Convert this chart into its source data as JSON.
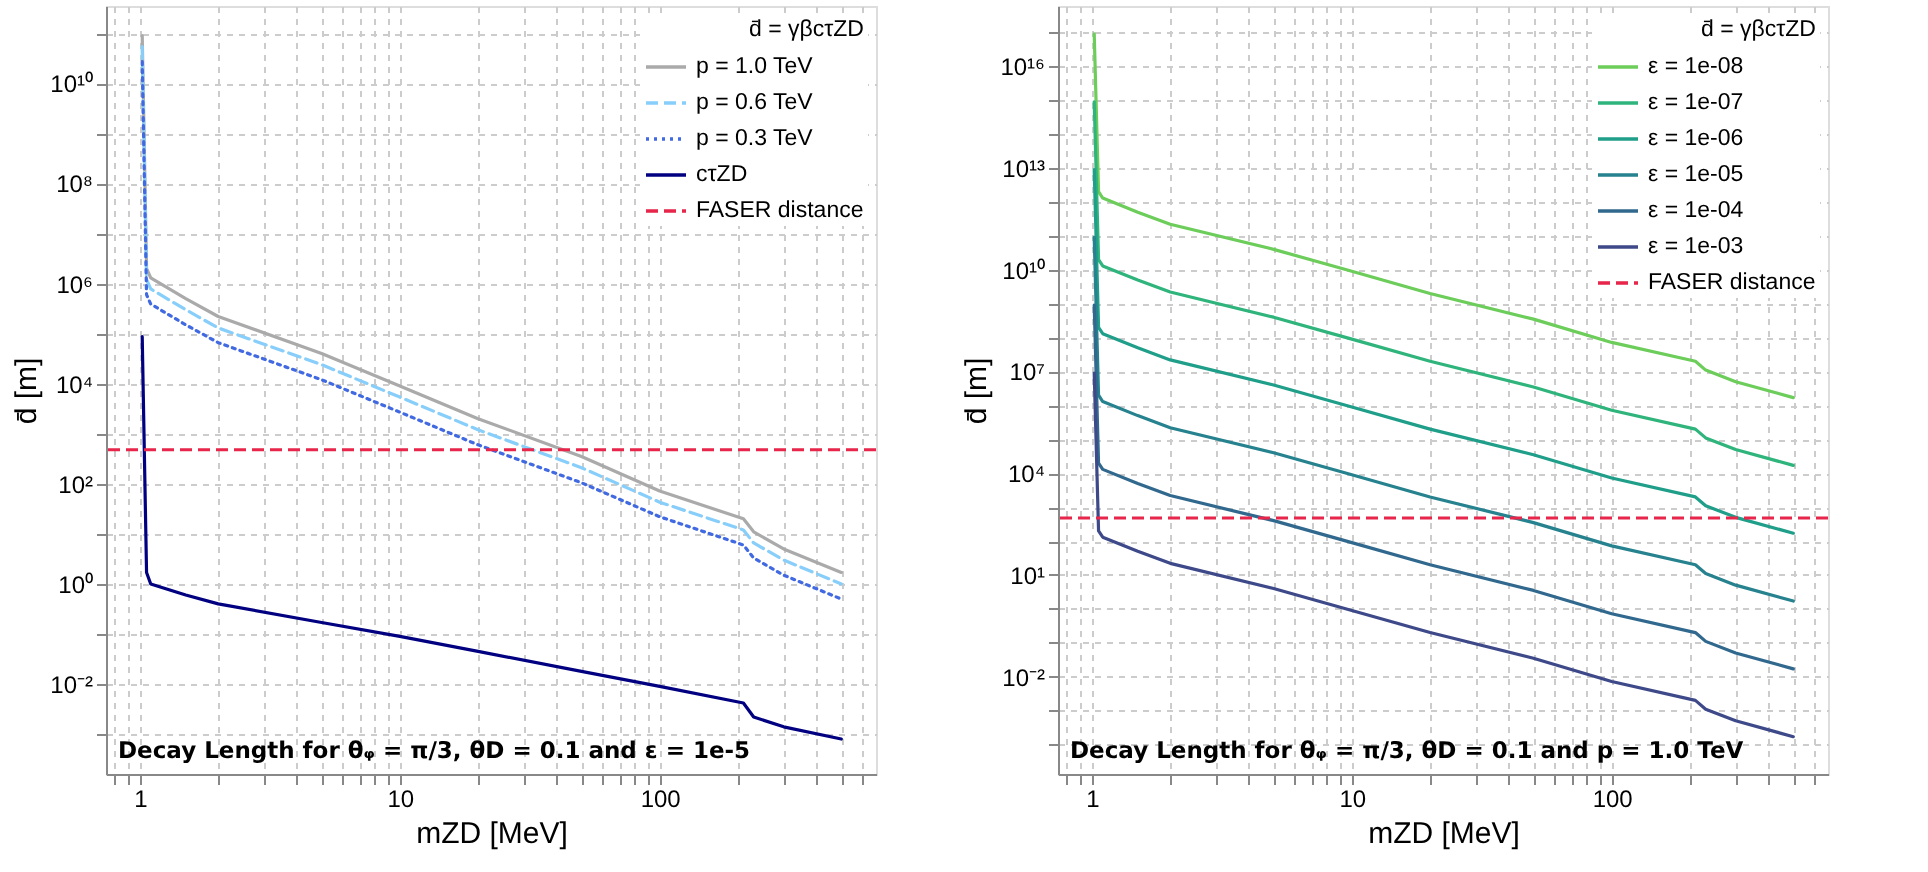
{
  "chart_data": [
    {
      "type": "line",
      "log": "xy",
      "grid": true,
      "legend": "top right",
      "legend_title": "d̄ = γβcτZD",
      "xlabel": "mZD [MeV]",
      "ylabel": "d̄ [m]",
      "xlim": [
        0.74,
        680
      ],
      "ylim": [
        0.00016,
        350000000000
      ],
      "xticks": [
        {
          "value": 0.8,
          "label": null
        },
        {
          "value": 0.9,
          "label": null
        },
        1,
        {
          "value": 2,
          "label": null
        },
        {
          "value": 3,
          "label": null
        },
        {
          "value": 4,
          "label": null
        },
        {
          "value": 5,
          "label": null
        },
        {
          "value": 6,
          "label": null
        },
        {
          "value": 7,
          "label": null
        },
        {
          "value": 8,
          "label": null
        },
        {
          "value": 9,
          "label": null
        },
        10,
        {
          "value": 20,
          "label": null
        },
        {
          "value": 30,
          "label": null
        },
        {
          "value": 40,
          "label": null
        },
        {
          "value": 50,
          "label": null
        },
        {
          "value": 60,
          "label": null
        },
        {
          "value": 70,
          "label": null
        },
        {
          "value": 80,
          "label": null
        },
        {
          "value": 90,
          "label": null
        },
        100,
        {
          "value": 200,
          "label": null
        },
        {
          "value": 300,
          "label": null
        },
        {
          "value": 400,
          "label": null
        },
        {
          "value": 500,
          "label": null
        },
        {
          "value": 600,
          "label": null
        }
      ],
      "yticks": [
        {
          "value": 0.001,
          "label": null
        },
        {
          "value": 0.01,
          "label": "10⁻²"
        },
        {
          "value": 0.1,
          "label": null
        },
        {
          "value": 1,
          "label": "10⁰"
        },
        {
          "value": 10,
          "label": null
        },
        {
          "value": 100,
          "label": "10²"
        },
        {
          "value": 1000,
          "label": null
        },
        {
          "value": 10000,
          "label": "10⁴"
        },
        {
          "value": 100000,
          "label": null
        },
        {
          "value": 1000000,
          "label": "10⁶"
        },
        {
          "value": 10000000,
          "label": null
        },
        {
          "value": 100000000,
          "label": "10⁸"
        },
        {
          "value": 1000000000,
          "label": null
        },
        {
          "value": 10000000000,
          "label": "10¹⁰"
        },
        {
          "value": 100000000000,
          "label": null
        }
      ],
      "x": [
        1.02,
        1.06,
        1.1,
        1.5,
        2,
        5,
        10,
        20,
        50,
        100,
        210,
        230,
        300,
        500
      ],
      "series": [
        {
          "name": "p = 1.0 TeV",
          "color": "#aaaaaa",
          "line_style": "solid",
          "values": [
            90000000000.0,
            2000000.0,
            1300000.0,
            500000.0,
            220000.0,
            40000.0,
            9000.0,
            2000.0,
            350,
            72,
            20,
            11,
            5,
            1.7
          ]
        },
        {
          "name": "p = 0.6 TeV",
          "color": "#87cefa",
          "line_style": "dashed",
          "values": [
            54000000000.0,
            1200000.0,
            780000.0,
            300000.0,
            130000.0,
            24000.0,
            5400.0,
            1200.0,
            210,
            43,
            12,
            6.6,
            3,
            1.0
          ]
        },
        {
          "name": "p = 0.3 TeV",
          "color": "#4169e1",
          "line_style": "dotted",
          "values": [
            27000000000.0,
            600000.0,
            390000.0,
            150000.0,
            66000.0,
            12000.0,
            2700.0,
            600,
            105,
            22,
            6,
            3.3,
            1.5,
            0.5
          ]
        },
        {
          "name": "cτZD",
          "color": "#000080",
          "line_style": "solid",
          "values": [
            87000.0,
            1.7,
            1.0,
            0.6,
            0.4,
            0.17,
            0.09,
            0.045,
            0.018,
            0.009,
            0.0042,
            0.0022,
            0.0014,
            0.0008
          ]
        }
      ],
      "ref_lines": [
        {
          "axis": "y",
          "value": 480,
          "label": "FASER distance",
          "color": "#e8254a",
          "line_style": "dashed"
        }
      ],
      "annotations": [
        "Decay Length for θᵩ = π/3, θD = 0.1 and ε = 1e-5"
      ]
    },
    {
      "type": "line",
      "log": "xy",
      "grid": true,
      "legend": "top right",
      "legend_title": "d̄ = γβcτZD",
      "xlabel": "mZD [MeV]",
      "ylabel": "d̄ [m]",
      "xlim": [
        0.74,
        680
      ],
      "ylim": [
        1.35e-05,
        6e+17
      ],
      "xticks": [
        {
          "value": 0.8,
          "label": null
        },
        {
          "value": 0.9,
          "label": null
        },
        1,
        {
          "value": 2,
          "label": null
        },
        {
          "value": 3,
          "label": null
        },
        {
          "value": 4,
          "label": null
        },
        {
          "value": 5,
          "label": null
        },
        {
          "value": 6,
          "label": null
        },
        {
          "value": 7,
          "label": null
        },
        {
          "value": 8,
          "label": null
        },
        {
          "value": 9,
          "label": null
        },
        10,
        {
          "value": 20,
          "label": null
        },
        {
          "value": 30,
          "label": null
        },
        {
          "value": 40,
          "label": null
        },
        {
          "value": 50,
          "label": null
        },
        {
          "value": 60,
          "label": null
        },
        {
          "value": 70,
          "label": null
        },
        {
          "value": 80,
          "label": null
        },
        {
          "value": 90,
          "label": null
        },
        100,
        {
          "value": 200,
          "label": null
        },
        {
          "value": 300,
          "label": null
        },
        {
          "value": 400,
          "label": null
        },
        {
          "value": 500,
          "label": null
        },
        {
          "value": 600,
          "label": null
        }
      ],
      "yticks": [
        {
          "value": 0.0001,
          "label": null
        },
        {
          "value": 0.001,
          "label": null
        },
        {
          "value": 0.01,
          "label": "10⁻²"
        },
        {
          "value": 0.1,
          "label": null
        },
        {
          "value": 1,
          "label": null
        },
        {
          "value": 10,
          "label": "10¹"
        },
        {
          "value": 100,
          "label": null
        },
        {
          "value": 1000,
          "label": null
        },
        {
          "value": 10000,
          "label": "10⁴"
        },
        {
          "value": 100000,
          "label": null
        },
        {
          "value": 1000000,
          "label": null
        },
        {
          "value": 10000000,
          "label": "10⁷"
        },
        {
          "value": 100000000,
          "label": null
        },
        {
          "value": 1000000000,
          "label": null
        },
        {
          "value": 10000000000,
          "label": "10¹⁰"
        },
        {
          "value": 100000000000,
          "label": null
        },
        {
          "value": 1000000000000,
          "label": null
        },
        {
          "value": 10000000000000,
          "label": "10¹³"
        },
        {
          "value": 100000000000000,
          "label": null
        },
        {
          "value": 1000000000000000,
          "label": null
        },
        {
          "value": 10000000000000000,
          "label": "10¹⁶"
        },
        {
          "value": 100000000000000000,
          "label": null
        }
      ],
      "x": [
        1.02,
        1.06,
        1.1,
        1.5,
        2,
        5,
        10,
        20,
        50,
        100,
        210,
        230,
        300,
        500
      ],
      "series": [
        {
          "name": "ε = 1e-08",
          "color": "#6ccd5a",
          "line_style": "solid",
          "values": [
            9e+16,
            2000000000000.0,
            1300000000000.0,
            500000000000.0,
            220000000000.0,
            40000000000.0,
            9000000000.0,
            2000000000.0,
            350000000.0,
            72000000.0,
            20000000.0,
            11000000.0,
            5000000.0,
            1700000.0
          ]
        },
        {
          "name": "ε = 1e-07",
          "color": "#2fb47c",
          "line_style": "solid",
          "values": [
            900000000000000.0,
            20000000000.0,
            13000000000.0,
            5000000000.0,
            2200000000.0,
            400000000.0,
            90000000.0,
            20000000.0,
            3500000.0,
            720000.0,
            200000.0,
            110000.0,
            50000.0,
            17000.0
          ]
        },
        {
          "name": "ε = 1e-06",
          "color": "#1f9e89",
          "line_style": "solid",
          "values": [
            9000000000000.0,
            200000000.0,
            130000000.0,
            50000000.0,
            22000000.0,
            4000000.0,
            900000.0,
            200000.0,
            35000.0,
            7200.0,
            2000.0,
            1100.0,
            500,
            170
          ]
        },
        {
          "name": "ε = 1e-05",
          "color": "#26828e",
          "line_style": "solid",
          "values": [
            90000000000.0,
            2000000.0,
            1300000.0,
            500000.0,
            220000.0,
            40000.0,
            9000.0,
            2000.0,
            350,
            72,
            20,
            11,
            5,
            1.7
          ]
        },
        {
          "name": "ε = 1e-04",
          "color": "#31688e",
          "line_style": "solid",
          "values": [
            900000000.0,
            20000.0,
            13000.0,
            5000.0,
            2200.0,
            400,
            90,
            20,
            3.5,
            0.72,
            0.2,
            0.11,
            0.05,
            0.017
          ]
        },
        {
          "name": "ε = 1e-03",
          "color": "#3e4989",
          "line_style": "solid",
          "values": [
            9000000.0,
            200,
            130,
            50,
            22,
            4,
            0.9,
            0.2,
            0.035,
            0.0072,
            0.002,
            0.0011,
            0.0005,
            0.00017
          ]
        }
      ],
      "ref_lines": [
        {
          "axis": "y",
          "value": 480,
          "label": "FASER distance",
          "color": "#e8254a",
          "line_style": "dashed"
        }
      ],
      "annotations": [
        "Decay Length for θᵩ = π/3, θD = 0.1 and p = 1.0 TeV"
      ]
    }
  ]
}
